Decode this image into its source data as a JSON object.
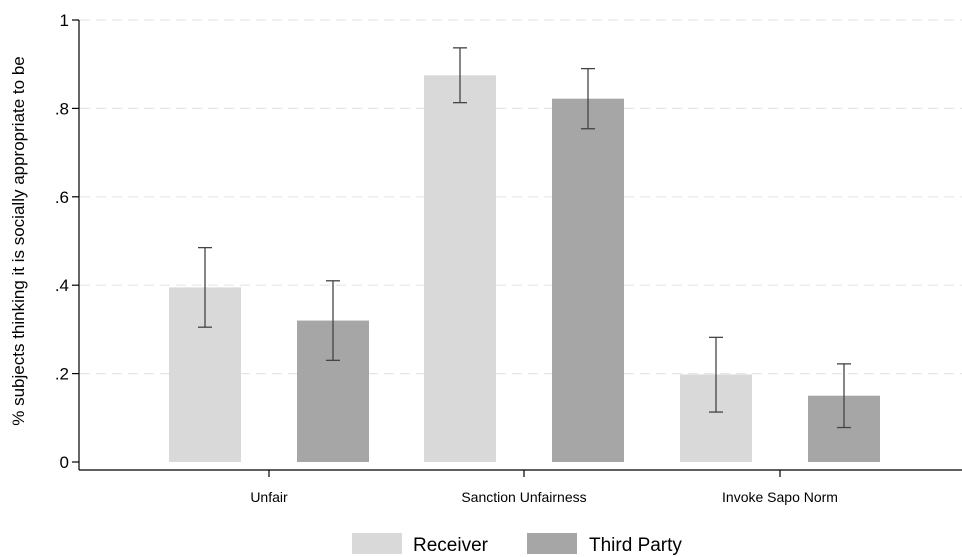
{
  "chart_data": {
    "type": "bar",
    "ylabel": "% subjects thinking it is socially appropriate to be",
    "xlabel": "",
    "ylim": [
      0,
      1
    ],
    "yticks": [
      {
        "value": 0,
        "label": "0"
      },
      {
        "value": 0.2,
        "label": ".2"
      },
      {
        "value": 0.4,
        "label": ".4"
      },
      {
        "value": 0.6,
        "label": ".6"
      },
      {
        "value": 0.8,
        "label": ".8"
      },
      {
        "value": 1,
        "label": "1"
      }
    ],
    "grid": true,
    "legend_position": "bottom",
    "categories": [
      "Unfair",
      "Sanction Unfairness",
      "Invoke Sapo Norm"
    ],
    "series": [
      {
        "name": "Receiver",
        "color": "#d9d9d9",
        "values": [
          0.395,
          0.875,
          0.198
        ],
        "ci_low": [
          0.305,
          0.813,
          0.113
        ],
        "ci_high": [
          0.485,
          0.937,
          0.282
        ]
      },
      {
        "name": "Third Party",
        "color": "#a6a6a6",
        "values": [
          0.32,
          0.822,
          0.15
        ],
        "ci_low": [
          0.23,
          0.754,
          0.078
        ],
        "ci_high": [
          0.41,
          0.89,
          0.222
        ]
      }
    ]
  }
}
